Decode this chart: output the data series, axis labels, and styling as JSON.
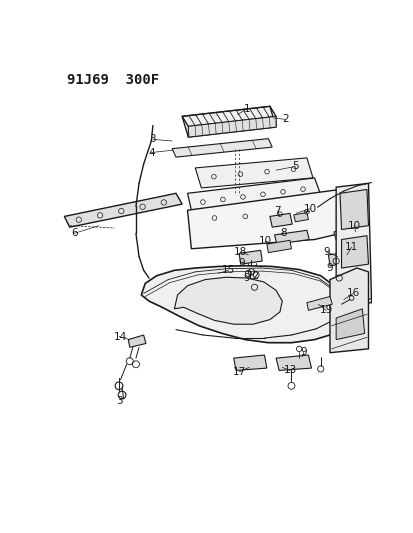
{
  "title": "91J69  300F",
  "bg_color": "#ffffff",
  "line_color": "#1a1a1a",
  "title_fontsize": 10,
  "label_fontsize": 7.5,
  "fig_width": 4.14,
  "fig_height": 5.33,
  "dpi": 100
}
